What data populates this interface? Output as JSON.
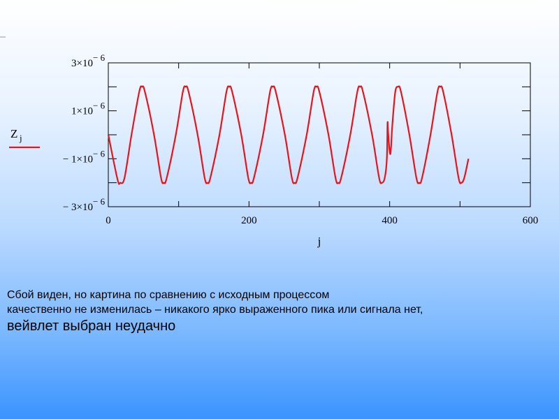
{
  "chart_data": {
    "type": "line",
    "xlabel": "j",
    "ylabel": "Z",
    "ylabel_sub": "j",
    "xlim": [
      0,
      600
    ],
    "ylim": [
      -3e-06,
      3e-06
    ],
    "grid": false,
    "x_ticks": [
      {
        "value": 0,
        "label": "0"
      },
      {
        "value": 200,
        "label": "200"
      },
      {
        "value": 400,
        "label": "400"
      },
      {
        "value": 600,
        "label": "600"
      }
    ],
    "y_ticks": [
      {
        "value": 3e-06,
        "mant": "3×10",
        "exp": "− 6"
      },
      {
        "value": 1e-06,
        "mant": "1×10",
        "exp": "− 6"
      },
      {
        "value": -1e-06,
        "mant": "− 1×10",
        "exp": "− 6"
      },
      {
        "value": -3e-06,
        "mant": "− 3×10",
        "exp": "− 6"
      }
    ],
    "series": [
      {
        "color": "#e8141b",
        "points": [
          [
            0,
            0.0
          ],
          [
            13,
            -1.85e-06
          ],
          [
            17,
            -2e-06
          ],
          [
            23,
            -1.8e-06
          ],
          [
            33,
            0.0
          ],
          [
            44,
            1.8e-06
          ],
          [
            48,
            2e-06
          ],
          [
            52,
            1.8e-06
          ],
          [
            65,
            0.0
          ],
          [
            75,
            -1.8e-06
          ],
          [
            79,
            -2e-06
          ],
          [
            83,
            -1.8e-06
          ],
          [
            96,
            0.0
          ],
          [
            106,
            1.8e-06
          ],
          [
            110,
            2e-06
          ],
          [
            114,
            1.8e-06
          ],
          [
            127,
            0.0
          ],
          [
            137,
            -1.8e-06
          ],
          [
            141,
            -2e-06
          ],
          [
            145,
            -1.8e-06
          ],
          [
            158,
            0.0
          ],
          [
            168,
            1.8e-06
          ],
          [
            172,
            2e-06
          ],
          [
            176,
            1.8e-06
          ],
          [
            189,
            0.0
          ],
          [
            199,
            -1.8e-06
          ],
          [
            203,
            -2e-06
          ],
          [
            207,
            -1.8e-06
          ],
          [
            220,
            0.0
          ],
          [
            230,
            1.8e-06
          ],
          [
            234,
            2e-06
          ],
          [
            238,
            1.8e-06
          ],
          [
            251,
            0.0
          ],
          [
            261,
            -1.8e-06
          ],
          [
            265,
            -2e-06
          ],
          [
            269,
            -1.8e-06
          ],
          [
            282,
            0.0
          ],
          [
            292,
            1.8e-06
          ],
          [
            296,
            2e-06
          ],
          [
            300,
            1.8e-06
          ],
          [
            313,
            0.0
          ],
          [
            323,
            -1.8e-06
          ],
          [
            327,
            -2e-06
          ],
          [
            331,
            -1.8e-06
          ],
          [
            344,
            0.0
          ],
          [
            354,
            1.8e-06
          ],
          [
            358,
            2e-06
          ],
          [
            362,
            1.8e-06
          ],
          [
            375,
            0.0
          ],
          [
            385,
            -1.8e-06
          ],
          [
            389,
            -2e-06
          ],
          [
            393,
            -1.8e-06
          ],
          [
            396,
            -1e-06
          ],
          [
            397,
            5e-07
          ],
          [
            398,
            0.0
          ],
          [
            401,
            -8e-07
          ],
          [
            404,
            5e-07
          ],
          [
            408,
            1.8e-06
          ],
          [
            412,
            2e-06
          ],
          [
            416,
            1.8e-06
          ],
          [
            428,
            0.0
          ],
          [
            438,
            -1.8e-06
          ],
          [
            442,
            -2e-06
          ],
          [
            446,
            -1.8e-06
          ],
          [
            458,
            0.0
          ],
          [
            468,
            1.8e-06
          ],
          [
            472,
            2e-06
          ],
          [
            476,
            1.8e-06
          ],
          [
            488,
            0.0
          ],
          [
            498,
            -1.8e-06
          ],
          [
            502,
            -2e-06
          ],
          [
            506,
            -1.8e-06
          ],
          [
            512,
            -1e-06
          ]
        ]
      }
    ]
  },
  "caption": {
    "line1": "Сбой виден, но картина по сравнению с исходным процессом",
    "line2": "качественно не изменилась – никакого ярко выраженного пика или сигнала нет,",
    "line3": "вейвлет выбран неудачно"
  }
}
